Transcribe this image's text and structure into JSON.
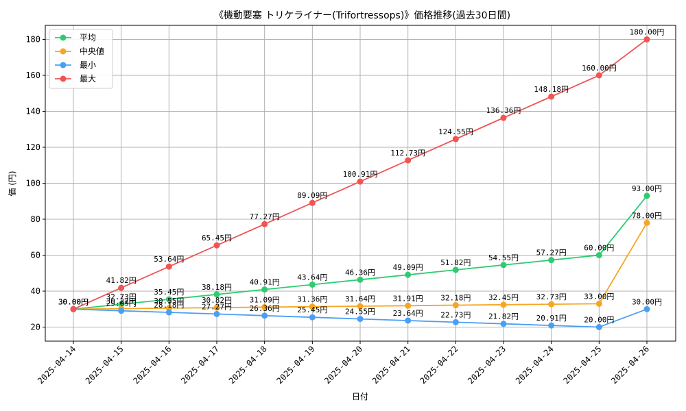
{
  "chart_data": {
    "type": "line",
    "title": "《機動要塞 トリケライナー(Trifortressops)》価格推移(過去30日間)",
    "xlabel": "日付",
    "ylabel": "価 (円)",
    "ylim": [
      12.2,
      187.8
    ],
    "yticks": [
      20,
      40,
      60,
      80,
      100,
      120,
      140,
      160,
      180
    ],
    "grid": true,
    "legend_position": "top-left",
    "label_suffix": "円",
    "categories": [
      "2025-04-14",
      "2025-04-15",
      "2025-04-16",
      "2025-04-17",
      "2025-04-18",
      "2025-04-19",
      "2025-04-20",
      "2025-04-21",
      "2025-04-22",
      "2025-04-23",
      "2025-04-24",
      "2025-04-25",
      "2025-04-26"
    ],
    "series": [
      {
        "name": "平均",
        "color": "#2ecc71",
        "values": [
          30.0,
          32.73,
          35.45,
          38.18,
          40.91,
          43.64,
          46.36,
          49.09,
          51.82,
          54.55,
          57.27,
          60.0,
          93.0
        ]
      },
      {
        "name": "中央値",
        "color": "#f5a623",
        "values": [
          30.0,
          30.27,
          30.55,
          30.82,
          31.09,
          31.36,
          31.64,
          31.91,
          32.18,
          32.45,
          32.73,
          33.0,
          78.0
        ]
      },
      {
        "name": "最小",
        "color": "#4a9ff5",
        "values": [
          30.0,
          29.09,
          28.18,
          27.27,
          26.36,
          25.45,
          24.55,
          23.64,
          22.73,
          21.82,
          20.91,
          20.0,
          30.0
        ]
      },
      {
        "name": "最大",
        "color": "#f05454",
        "values": [
          30.0,
          41.82,
          53.64,
          65.45,
          77.27,
          89.09,
          100.91,
          112.73,
          124.55,
          136.36,
          148.18,
          160.0,
          180.0
        ]
      }
    ]
  }
}
